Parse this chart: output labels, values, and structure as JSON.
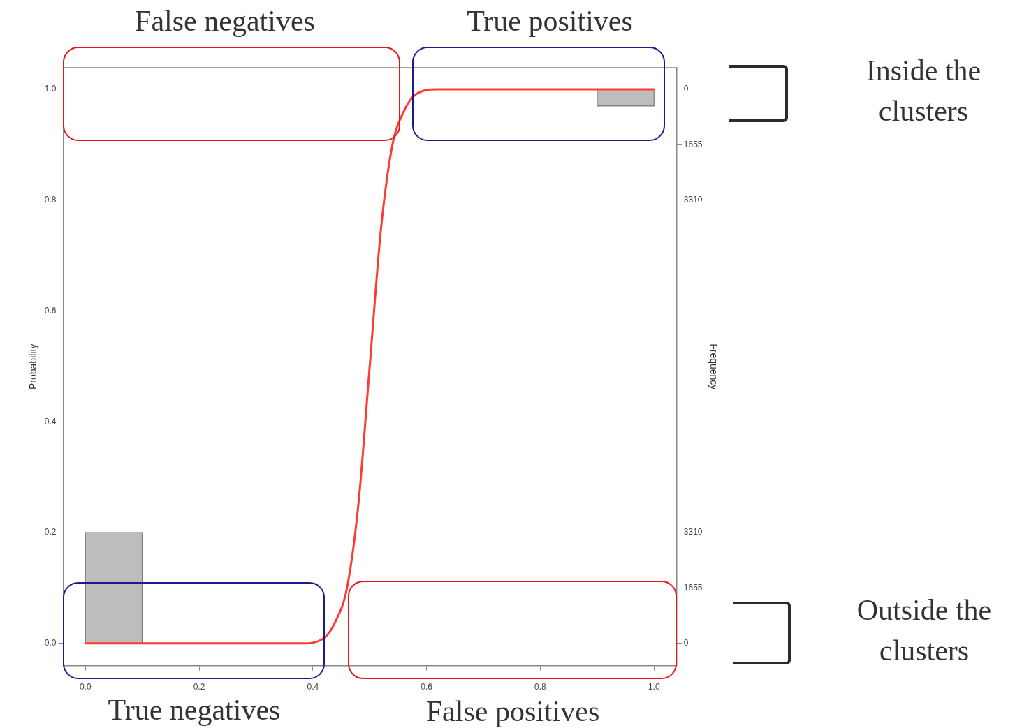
{
  "chart_data": {
    "type": "line",
    "ylabel": "Probability",
    "y2label": "Frequency",
    "xlim": [
      -0.039,
      1.04
    ],
    "ylim": [
      -0.04,
      1.039
    ],
    "y2lim": [
      17212,
      -645
    ],
    "y3lim": [
      -662,
      17195
    ],
    "xticks": [
      {
        "value": 0,
        "label": "0.0"
      },
      {
        "value": 0.2,
        "label": "0.2"
      },
      {
        "value": 0.4,
        "label": "0.4"
      },
      {
        "value": 0.6,
        "label": "0.6"
      },
      {
        "value": 0.8,
        "label": "0.8"
      },
      {
        "value": 1,
        "label": "1.0"
      }
    ],
    "yticks": [
      {
        "value": 0,
        "label": "0.0"
      },
      {
        "value": 0.2,
        "label": "0.2"
      },
      {
        "value": 0.4,
        "label": "0.4"
      },
      {
        "value": 0.6,
        "label": "0.6"
      },
      {
        "value": 0.8,
        "label": "0.8"
      },
      {
        "value": 1,
        "label": "1.0"
      }
    ],
    "y2ticks": [
      0,
      1655,
      3310
    ],
    "y3ticks": [
      0,
      1655,
      3310
    ],
    "grid": false,
    "legend": false,
    "marker": "none",
    "line_style": "solid",
    "series": [
      {
        "color": "#ff3b2f",
        "x": [
          0,
          0.1,
          0.2,
          0.3,
          0.38,
          0.42,
          0.44,
          0.46,
          0.48,
          0.5,
          0.52,
          0.54,
          0.56,
          0.58,
          0.62,
          0.7,
          0.8,
          0.9,
          1
        ],
        "values": [
          0,
          0,
          0,
          0,
          0,
          0.01,
          0.04,
          0.1,
          0.25,
          0.5,
          0.75,
          0.9,
          0.96,
          0.99,
          1,
          1,
          1,
          1,
          1
        ]
      },
      {
        "type": "histogram",
        "axis": "y3",
        "color": "#bdbdbd",
        "bins": [
          0,
          0.1
        ],
        "values": [
          3310
        ]
      },
      {
        "type": "histogram",
        "axis": "y2",
        "color": "#bdbdbd",
        "bins": [
          0.9,
          1
        ],
        "values": [
          500
        ]
      }
    ],
    "annotations": [
      "False negatives",
      "True positives",
      "Inside the clusters",
      "True negatives",
      "False positives",
      "Outside the clusters"
    ]
  }
}
